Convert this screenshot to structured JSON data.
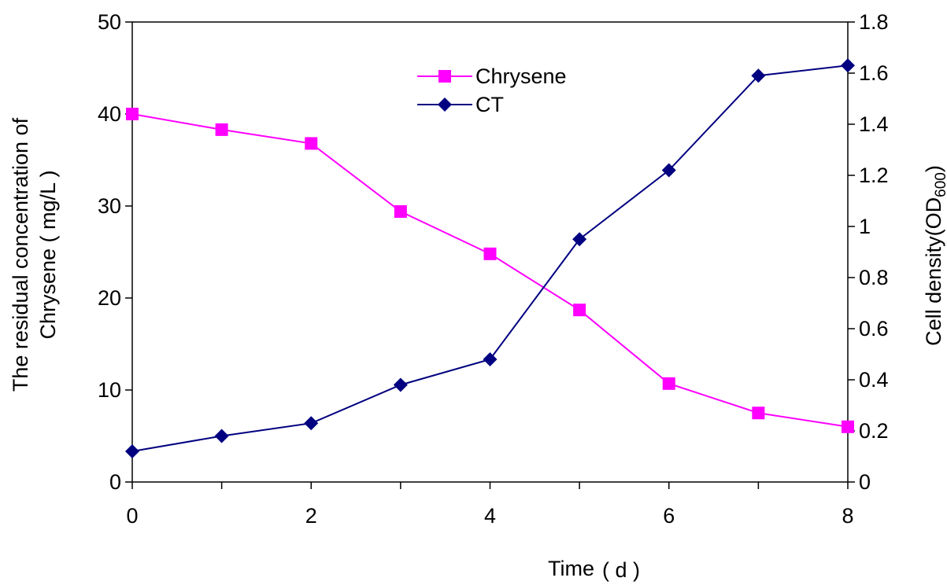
{
  "chart_data": {
    "type": "line",
    "x": [
      0,
      1,
      2,
      3,
      4,
      5,
      6,
      7,
      8
    ],
    "xlim": [
      0,
      8
    ],
    "x_ticks": [
      "0",
      "2",
      "4",
      "6",
      "8"
    ],
    "xlabel": "Time",
    "xlabel_unit": "( d )",
    "ylabel_left_line1": "The residual concentration of",
    "ylabel_left_line2": "Chrysene ( mg/L )",
    "ylim_left": [
      0,
      50
    ],
    "y_ticks_left": [
      "0",
      "10",
      "20",
      "30",
      "40",
      "50"
    ],
    "ylabel_right": "Cell density(OD",
    "ylabel_right_sub": "600",
    "ylabel_right_close": ")",
    "ylim_right": [
      0,
      1.8
    ],
    "y_ticks_right": [
      "0",
      "0.2",
      "0.4",
      "0.6",
      "0.8",
      "1",
      "1.2",
      "1.4",
      "1.6",
      "1.8"
    ],
    "grid": false,
    "legend_position": "top-center",
    "series": [
      {
        "name": "Chrysene",
        "axis": "left",
        "marker": "square",
        "color": "#ff00ff",
        "values": [
          40.0,
          38.3,
          36.8,
          29.4,
          24.8,
          18.7,
          10.7,
          7.5,
          6.0
        ]
      },
      {
        "name": "CT",
        "axis": "right",
        "marker": "diamond",
        "color": "#000080",
        "values": [
          0.12,
          0.18,
          0.23,
          0.38,
          0.48,
          0.95,
          1.22,
          1.59,
          1.63
        ]
      }
    ]
  }
}
